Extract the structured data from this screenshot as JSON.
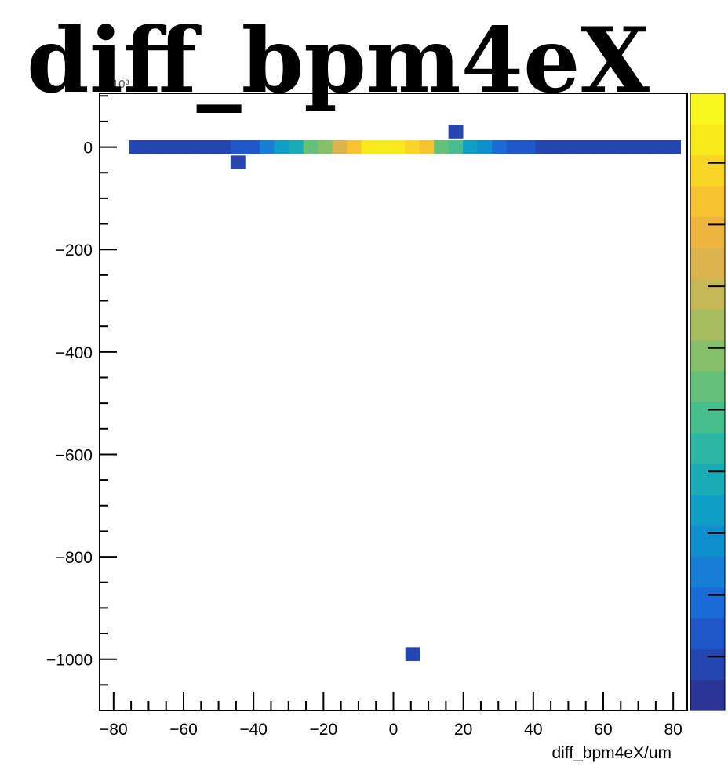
{
  "chart_data": {
    "type": "heatmap",
    "title": "diff_bpm4eX",
    "xlabel": "diff_bpm4eX/um",
    "ylabel": "",
    "y_multiplier_label": "×10³",
    "xlim": [
      -84,
      84
    ],
    "ylim": [
      -1100,
      105
    ],
    "x_ticks": [
      -80,
      -60,
      -40,
      -20,
      0,
      20,
      40,
      60,
      80
    ],
    "y_ticks": [
      0,
      -200,
      -400,
      -600,
      -800,
      -1000
    ],
    "bin_width_x": 4.15,
    "bin_height_y": 27,
    "cells": [
      {
        "x": -73.5,
        "y": 0,
        "z": 0.05
      },
      {
        "x": -69.35,
        "y": 0,
        "z": 0.05
      },
      {
        "x": -65.2,
        "y": 0,
        "z": 0.05
      },
      {
        "x": -61.05,
        "y": 0,
        "z": 0.05
      },
      {
        "x": -56.9,
        "y": 0,
        "z": 0.05
      },
      {
        "x": -52.75,
        "y": 0,
        "z": 0.05
      },
      {
        "x": -48.6,
        "y": 0,
        "z": 0.05
      },
      {
        "x": -44.45,
        "y": 0,
        "z": 0.1
      },
      {
        "x": -40.3,
        "y": 0,
        "z": 0.12
      },
      {
        "x": -36.15,
        "y": 0,
        "z": 0.2
      },
      {
        "x": -32.0,
        "y": 0,
        "z": 0.3
      },
      {
        "x": -27.85,
        "y": 0,
        "z": 0.38
      },
      {
        "x": -23.7,
        "y": 0,
        "z": 0.5
      },
      {
        "x": -19.55,
        "y": 0,
        "z": 0.6
      },
      {
        "x": -15.4,
        "y": 0,
        "z": 0.75
      },
      {
        "x": -11.25,
        "y": 0,
        "z": 0.85
      },
      {
        "x": -7.1,
        "y": 0,
        "z": 0.97
      },
      {
        "x": -2.95,
        "y": 0,
        "z": 0.97
      },
      {
        "x": 1.2,
        "y": 0,
        "z": 0.97
      },
      {
        "x": 5.35,
        "y": 0,
        "z": 0.9
      },
      {
        "x": 9.5,
        "y": 0,
        "z": 0.82
      },
      {
        "x": 13.65,
        "y": 0,
        "z": 0.55
      },
      {
        "x": 17.8,
        "y": 0,
        "z": 0.45
      },
      {
        "x": 21.95,
        "y": 0,
        "z": 0.32
      },
      {
        "x": 26.1,
        "y": 0,
        "z": 0.25
      },
      {
        "x": 30.25,
        "y": 0,
        "z": 0.15
      },
      {
        "x": 34.4,
        "y": 0,
        "z": 0.1
      },
      {
        "x": 38.55,
        "y": 0,
        "z": 0.08
      },
      {
        "x": 42.7,
        "y": 0,
        "z": 0.05
      },
      {
        "x": 46.85,
        "y": 0,
        "z": 0.05
      },
      {
        "x": 51.0,
        "y": 0,
        "z": 0.05
      },
      {
        "x": 55.15,
        "y": 0,
        "z": 0.05
      },
      {
        "x": 59.3,
        "y": 0,
        "z": 0.05
      },
      {
        "x": 63.45,
        "y": 0,
        "z": 0.05
      },
      {
        "x": 67.6,
        "y": 0,
        "z": 0.05
      },
      {
        "x": 71.75,
        "y": 0,
        "z": 0.05
      },
      {
        "x": 75.9,
        "y": 0,
        "z": 0.05
      },
      {
        "x": 80.05,
        "y": 0,
        "z": 0.05
      },
      {
        "x": -44.5,
        "y": -30,
        "z": 0.05
      },
      {
        "x": 17.8,
        "y": 30,
        "z": 0.05
      },
      {
        "x": 5.5,
        "y": -990,
        "z": 0.05
      }
    ],
    "colorscale": [
      "#2a3597",
      "#2546b1",
      "#1f58c8",
      "#1b6bd6",
      "#167ed4",
      "#0f8fcc",
      "#109fc4",
      "#1aacb6",
      "#2bb7a4",
      "#46be8d",
      "#64c17a",
      "#86c06a",
      "#a8bd5f",
      "#c6b757",
      "#dbb44e",
      "#eeb63f",
      "#f8c331",
      "#f9d625",
      "#f9ea1c",
      "#f9f81c"
    ],
    "grid": false,
    "legend": "colorbar-right"
  }
}
